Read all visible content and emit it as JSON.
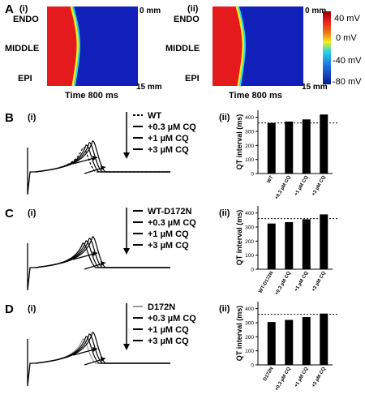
{
  "panel_a": {
    "letter": "A",
    "sub_i": "(i)",
    "sub_ii": "(ii)",
    "depth_top": "0 mm",
    "depth_bottom": "15 mm",
    "row_labels": [
      "ENDO",
      "MIDDLE",
      "EPI"
    ],
    "time_label": "Time 800 ms",
    "colorbar_ticks": [
      "40 mV",
      "0 mV",
      "-40 mV",
      "-80 mV"
    ],
    "colors": {
      "red": "#e8201c",
      "orange": "#f07a18",
      "yellow": "#f2ee1a",
      "cyan": "#28d6e6",
      "blue": "#1020b8"
    }
  },
  "panels": [
    {
      "letter": "B",
      "sub_i": "(i)",
      "sub_ii": "(ii)",
      "legend": [
        "WT",
        "+0.3 µM CQ",
        "+1 µM CQ",
        "+3 µM CQ"
      ],
      "legend_first_style": "dashed",
      "ylabel": "QT interval (ms)",
      "yticks": [
        "0",
        "100",
        "200",
        "300",
        "400"
      ],
      "reference_line": 360,
      "chart_data": {
        "type": "bar",
        "categories": [
          "WT",
          "+0.3 µM CQ",
          "+1 µM CQ",
          "+3 µM CQ"
        ],
        "values": [
          360,
          370,
          385,
          420
        ],
        "ylabel": "QT interval (ms)",
        "ylim": [
          0,
          450
        ]
      }
    },
    {
      "letter": "C",
      "sub_i": "(i)",
      "sub_ii": "(ii)",
      "legend": [
        "WT-D172N",
        "+0.3 µM CQ",
        "+1 µM CQ",
        "+3 µM CQ"
      ],
      "legend_first_style": "solid",
      "ylabel": "QT interval (ms)",
      "yticks": [
        "0",
        "100",
        "200",
        "300",
        "400"
      ],
      "reference_line": 360,
      "chart_data": {
        "type": "bar",
        "categories": [
          "WT-D172N",
          "+0.3 µM CQ",
          "+1 µM CQ",
          "+3 µM CQ"
        ],
        "values": [
          325,
          335,
          355,
          390
        ],
        "ylabel": "QT interval (ms)",
        "ylim": [
          0,
          450
        ]
      }
    },
    {
      "letter": "D",
      "sub_i": "(i)",
      "sub_ii": "(ii)",
      "legend": [
        "D172N",
        "+0.3 µM CQ",
        "+1 µM CQ",
        "+3 µM CQ"
      ],
      "legend_first_style": "grey",
      "ylabel": "QT interval (ms)",
      "yticks": [
        "0",
        "100",
        "200",
        "300",
        "400"
      ],
      "reference_line": 360,
      "chart_data": {
        "type": "bar",
        "categories": [
          "D172N",
          "+0.3 µM CQ",
          "+1 µM CQ",
          "+3 µM CQ"
        ],
        "values": [
          305,
          320,
          340,
          365
        ],
        "ylabel": "QT interval (ms)",
        "ylim": [
          0,
          450
        ]
      }
    }
  ]
}
